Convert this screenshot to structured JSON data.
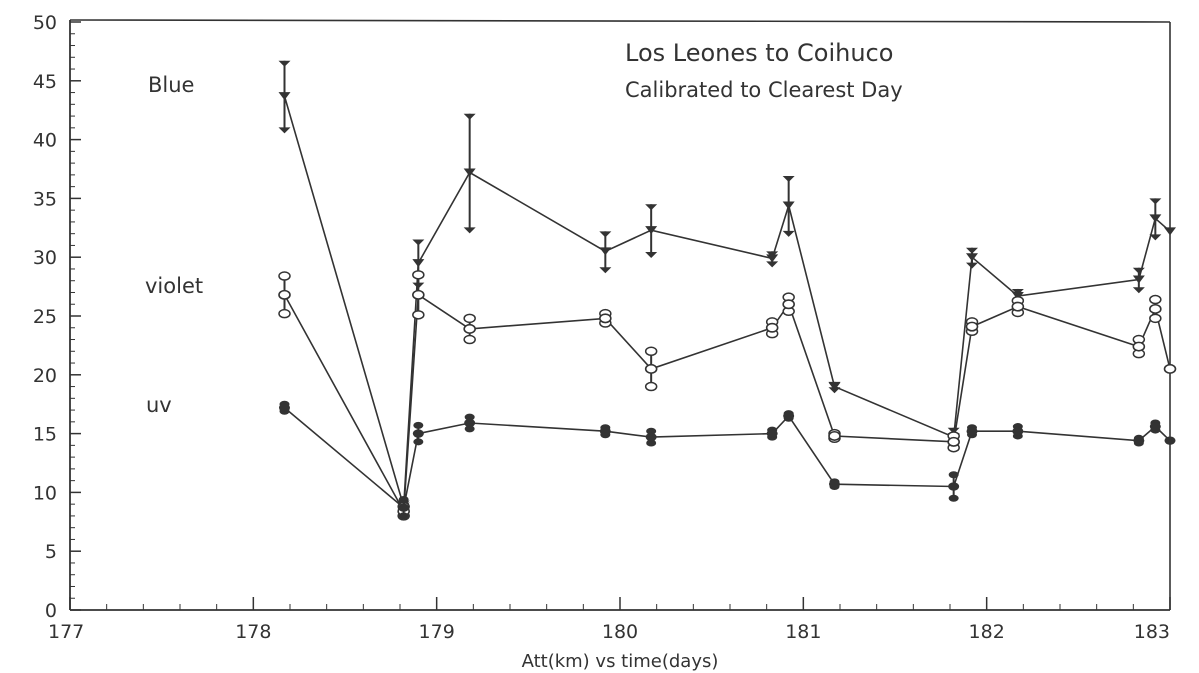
{
  "chart_data": {
    "type": "line",
    "title": "Los Leones to Coihuco",
    "subtitle": "Calibrated to Clearest Day",
    "xlabel": "Att(km) vs time(days)",
    "ylabel": "",
    "xlim": [
      177,
      183
    ],
    "ylim": [
      0,
      50
    ],
    "x_ticks": [
      "177",
      "178",
      "179",
      "180",
      "181",
      "182",
      "183"
    ],
    "y_ticks": [
      "0",
      "5",
      "10",
      "15",
      "20",
      "25",
      "30",
      "35",
      "40",
      "45",
      "50"
    ],
    "grid": false,
    "legend": "inline labels at left",
    "series": [
      {
        "name": "Blue",
        "marker": "triangle-down",
        "color": "#333333",
        "points": [
          {
            "x": 178.17,
            "y": 43.7,
            "err": 3.0
          },
          {
            "x": 178.82,
            "y": 8.8,
            "err": 0.5
          },
          {
            "x": 178.9,
            "y": 29.5,
            "err": 2.0
          },
          {
            "x": 179.18,
            "y": 37.2,
            "err": 5.0
          },
          {
            "x": 179.92,
            "y": 30.5,
            "err": 1.7
          },
          {
            "x": 180.17,
            "y": 32.3,
            "err": 2.2
          },
          {
            "x": 180.83,
            "y": 29.9,
            "err": 0.6
          },
          {
            "x": 180.92,
            "y": 34.4,
            "err": 2.5
          },
          {
            "x": 181.17,
            "y": 19.0,
            "err": 0.4
          },
          {
            "x": 181.82,
            "y": 14.7,
            "err": 0.8
          },
          {
            "x": 181.92,
            "y": 30.0,
            "err": 0.8
          },
          {
            "x": 182.17,
            "y": 26.7,
            "err": 0.6
          },
          {
            "x": 182.83,
            "y": 28.1,
            "err": 1.0
          },
          {
            "x": 182.92,
            "y": 33.3,
            "err": 1.7
          },
          {
            "x": 183.0,
            "y": 32.2,
            "err": 0
          }
        ]
      },
      {
        "name": "violet",
        "marker": "open-circle",
        "color": "#333333",
        "points": [
          {
            "x": 178.17,
            "y": 26.8,
            "err": 1.6
          },
          {
            "x": 178.82,
            "y": 8.4,
            "err": 0.4
          },
          {
            "x": 178.9,
            "y": 26.8,
            "err": 1.7
          },
          {
            "x": 179.18,
            "y": 23.9,
            "err": 0.9
          },
          {
            "x": 179.92,
            "y": 24.8,
            "err": 0.4
          },
          {
            "x": 180.17,
            "y": 20.5,
            "err": 1.5
          },
          {
            "x": 180.83,
            "y": 24.0,
            "err": 0.5
          },
          {
            "x": 180.92,
            "y": 26.0,
            "err": 0.6
          },
          {
            "x": 181.17,
            "y": 14.8,
            "err": 0.2
          },
          {
            "x": 181.82,
            "y": 14.3,
            "err": 0.5
          },
          {
            "x": 181.92,
            "y": 24.1,
            "err": 0.4
          },
          {
            "x": 182.17,
            "y": 25.8,
            "err": 0.5
          },
          {
            "x": 182.83,
            "y": 22.4,
            "err": 0.6
          },
          {
            "x": 182.92,
            "y": 25.6,
            "err": 0.8
          },
          {
            "x": 183.0,
            "y": 20.5,
            "err": 0
          }
        ]
      },
      {
        "name": "uv",
        "marker": "filled-circle",
        "color": "#333333",
        "points": [
          {
            "x": 178.17,
            "y": 17.2,
            "err": 0.3
          },
          {
            "x": 178.82,
            "y": 8.7,
            "err": 0.7
          },
          {
            "x": 178.9,
            "y": 15.0,
            "err": 0.7
          },
          {
            "x": 179.18,
            "y": 15.9,
            "err": 0.5
          },
          {
            "x": 179.92,
            "y": 15.2,
            "err": 0.3
          },
          {
            "x": 180.17,
            "y": 14.7,
            "err": 0.5
          },
          {
            "x": 180.83,
            "y": 15.0,
            "err": 0.3
          },
          {
            "x": 180.92,
            "y": 16.5,
            "err": 0.2
          },
          {
            "x": 181.17,
            "y": 10.7,
            "err": 0.2
          },
          {
            "x": 181.82,
            "y": 10.5,
            "err": 1.0
          },
          {
            "x": 181.92,
            "y": 15.2,
            "err": 0.3
          },
          {
            "x": 182.17,
            "y": 15.2,
            "err": 0.4
          },
          {
            "x": 182.83,
            "y": 14.4,
            "err": 0.2
          },
          {
            "x": 182.92,
            "y": 15.6,
            "err": 0.3
          },
          {
            "x": 183.0,
            "y": 14.4,
            "err": 0
          }
        ]
      }
    ]
  }
}
